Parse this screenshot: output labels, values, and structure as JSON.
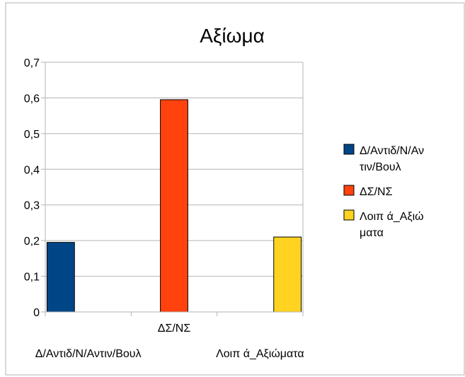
{
  "chart_data": {
    "type": "bar",
    "title": "Αξίωμα",
    "categories": [
      "Δ/Αντιδ/Ν/Αντιν/Βουλ",
      "ΔΣ/ΝΣ",
      "Λοιπ ά_Αξιώματα"
    ],
    "series": [
      {
        "name": "Δ/Αντιδ/Ν/Αντιν/Βουλ",
        "values": [
          0.195,
          null,
          null
        ],
        "color": "#004586"
      },
      {
        "name": "ΔΣ/ΝΣ",
        "values": [
          null,
          0.595,
          null
        ],
        "color": "#ff420e"
      },
      {
        "name": "Λοιπ ά_Αξιώματα",
        "values": [
          null,
          null,
          0.21
        ],
        "color": "#ffd320"
      }
    ],
    "legend": {
      "position": "right",
      "labels": [
        [
          "Δ/Αντιδ/Ν/Αν",
          "τιν/Βουλ"
        ],
        [
          "ΔΣ/ΝΣ"
        ],
        [
          "Λοιπ ά_Αξιώ",
          "ματα"
        ]
      ]
    },
    "y_ticks": [
      "0",
      "0,1",
      "0,2",
      "0,3",
      "0,4",
      "0,5",
      "0,6",
      "0,7"
    ],
    "ylim": [
      0,
      0.7
    ],
    "grid": true,
    "xlabel": "",
    "ylabel": ""
  }
}
